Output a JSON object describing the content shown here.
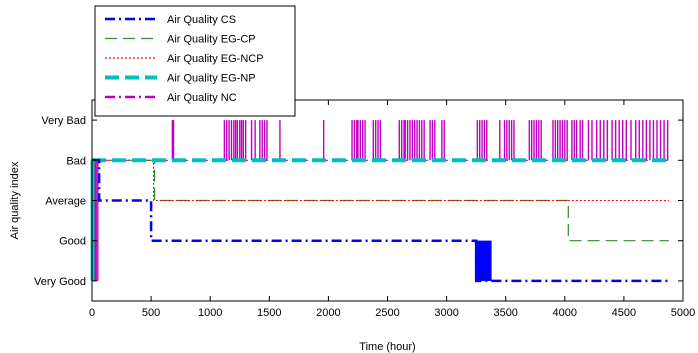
{
  "chart_data": {
    "type": "line",
    "title": "",
    "xlabel": "Time (hour)",
    "ylabel": "Air quality index",
    "xlim": [
      0,
      5000
    ],
    "ylim": [
      0.5,
      5.5
    ],
    "x_ticks": [
      0,
      500,
      1000,
      1500,
      2000,
      2500,
      3000,
      3500,
      4000,
      4500,
      5000
    ],
    "y_ticks": [
      {
        "value": 1,
        "label": "Very Good"
      },
      {
        "value": 2,
        "label": "Good"
      },
      {
        "value": 3,
        "label": "Average"
      },
      {
        "value": 4,
        "label": "Bad"
      },
      {
        "value": 5,
        "label": "Very Bad"
      }
    ],
    "grid": false,
    "legend_position": "top-left",
    "series": [
      {
        "name": "Air Quality CS",
        "color": "#0000ff",
        "style": "dash-dot",
        "x": [
          0,
          60,
          60,
          500,
          500,
          3250,
          3250,
          3380,
          3380,
          4880
        ],
        "y": [
          4,
          4,
          3,
          3,
          2,
          2,
          1,
          1,
          1,
          1
        ]
      },
      {
        "name": "Air Quality EG-CP",
        "color": "#2e8b2e",
        "style": "dashed",
        "x": [
          0,
          530,
          530,
          4030,
          4030,
          4880
        ],
        "y": [
          4,
          4,
          3,
          3,
          2,
          2
        ]
      },
      {
        "name": "Air Quality EG-NCP",
        "color": "#ff0000",
        "style": "dotted",
        "x": [
          0,
          520,
          520,
          4880
        ],
        "y": [
          4,
          4,
          3,
          3
        ]
      },
      {
        "name": "Air Quality EG-NP",
        "color": "#00bfbf",
        "style": "thick-dashed",
        "x": [
          0,
          4880
        ],
        "y": [
          4,
          4
        ]
      },
      {
        "name": "Air Quality NC",
        "color": "#bf00bf",
        "style": "dash-dot",
        "baseline": 4,
        "x_end": 4880,
        "spikes_to_very_bad": [
          680,
          690,
          1120,
          1140,
          1160,
          1180,
          1200,
          1215,
          1230,
          1250,
          1265,
          1280,
          1300,
          1350,
          1380,
          1420,
          1440,
          1460,
          1480,
          1590,
          1960,
          2200,
          2220,
          2240,
          2250,
          2270,
          2290,
          2310,
          2380,
          2400,
          2420,
          2440,
          2600,
          2620,
          2640,
          2650,
          2670,
          2690,
          2710,
          2730,
          2750,
          2770,
          2790,
          2810,
          2860,
          2880,
          2900,
          2960,
          2980,
          3260,
          3280,
          3300,
          3320,
          3340,
          3450,
          3490,
          3510,
          3530,
          3550,
          3570,
          3700,
          3720,
          3740,
          3760,
          3780,
          3800,
          3900,
          3920,
          3940,
          3960,
          3980,
          4000,
          4020,
          4060,
          4080,
          4100,
          4130,
          4150,
          4200,
          4230,
          4270,
          4300,
          4330,
          4360,
          4400,
          4430,
          4460,
          4490,
          4520,
          4560,
          4600,
          4630,
          4660,
          4690,
          4720,
          4750,
          4780,
          4810,
          4840,
          4870
        ],
        "early_dips_to_very_good": [
          10,
          20,
          30,
          40,
          50
        ]
      }
    ]
  }
}
